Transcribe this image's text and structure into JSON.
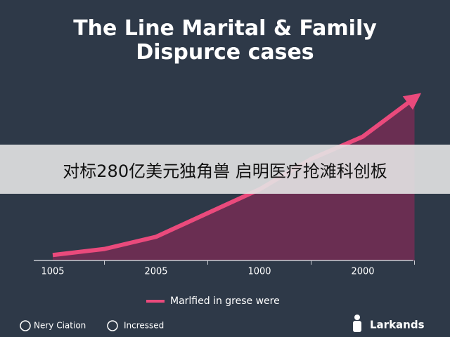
{
  "chart_data": {
    "type": "line",
    "title": "The Line Marital & Family Dispurce cases",
    "categories": [
      "1005",
      null,
      "2005",
      null,
      "1000",
      null,
      "2000",
      null
    ],
    "series": [
      {
        "name": "Marlfied in grese were",
        "color": "#ea4a7c",
        "fill": "#6a2e52",
        "values": [
          8,
          17,
          35,
          70,
          105,
          150,
          183,
          240
        ]
      }
    ],
    "ylim": [
      0,
      250
    ]
  },
  "overlay_caption": "对标280亿美元独角兽 启明医疗抢滩科创板",
  "footer": {
    "left": "Nery Ciation",
    "middle": "Incressed",
    "brand": "Larkands"
  }
}
